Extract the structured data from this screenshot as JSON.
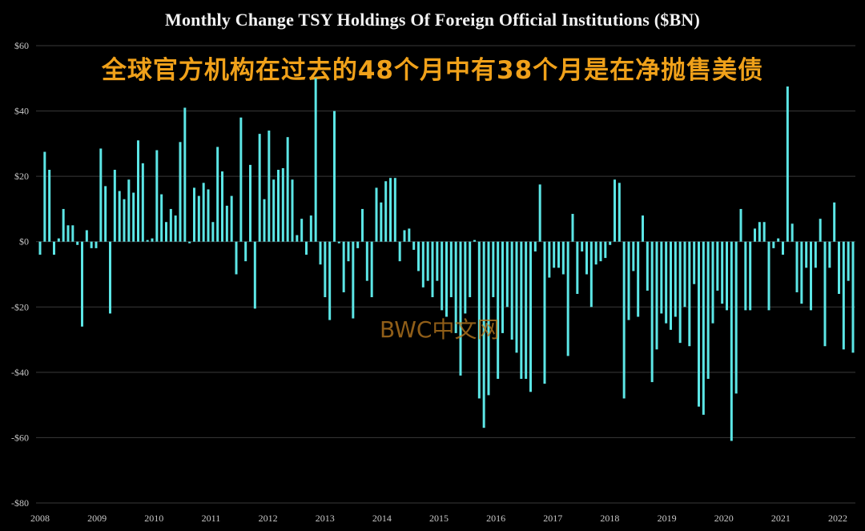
{
  "title": "Monthly Change TSY Holdings Of Foreign Official Institutions ($BN)",
  "subtitle": "全球官方机构在过去的48个月中有38个月是在净抛售美债",
  "watermark": "BWC中文网",
  "colors": {
    "background": "#000000",
    "bar": "#5ce6e6",
    "grid": "#3a3a3a",
    "title": "#f2f2f2",
    "subtitle": "#f0a11a",
    "watermark": "#b9791f"
  },
  "chart_data": {
    "type": "bar",
    "ylim": [
      -80,
      60
    ],
    "yticks": [
      60,
      40,
      20,
      0,
      -20,
      -40,
      -60,
      -80
    ],
    "ytick_labels": [
      "$60",
      "$40",
      "$20",
      "$0",
      "-$20",
      "-$40",
      "-$60",
      "-$80"
    ],
    "xtick_labels": [
      "2008",
      "2009",
      "2010",
      "2011",
      "2012",
      "2013",
      "2014",
      "2015",
      "2016",
      "2017",
      "2018",
      "2019",
      "2020",
      "2021",
      "2022"
    ],
    "grid": true,
    "x_start": "2008-01",
    "frequency": "monthly",
    "values": [
      -4,
      27.5,
      22,
      -4,
      1,
      10,
      5,
      5,
      -1,
      -26,
      3.5,
      -2,
      -2,
      28.5,
      17,
      -22,
      22,
      15.5,
      13,
      19,
      15,
      31,
      24,
      0.5,
      1,
      28,
      14.5,
      6,
      10,
      8,
      30.5,
      41,
      -0.5,
      16.5,
      14,
      18,
      16,
      6,
      29,
      21.5,
      11,
      14,
      -10,
      38,
      -6,
      23.5,
      -20.5,
      33,
      13,
      34,
      19,
      22,
      22.5,
      32,
      19,
      2,
      7,
      -4,
      8,
      50,
      -7,
      -17,
      -24,
      40,
      -0.5,
      -15.5,
      -6,
      -23.5,
      -2,
      10,
      -12,
      -17,
      16.5,
      12,
      18.5,
      19.5,
      19.5,
      -6,
      3.5,
      4,
      -2.5,
      -9,
      -14,
      -12,
      -17,
      -12,
      -21,
      -23,
      -17,
      -28,
      -41,
      -22,
      -17,
      0.5,
      -48,
      -57,
      -47,
      -17,
      -42,
      -28,
      -20,
      -30,
      -34,
      -42,
      -42,
      -46,
      -3,
      17.5,
      -43.5,
      -11,
      -8,
      -8,
      -10,
      -35,
      8.5,
      -16,
      -3,
      -10,
      -20,
      -7,
      -6,
      -5,
      -1,
      19,
      18,
      -48,
      -24,
      -9,
      -23,
      8,
      -15,
      -43,
      -33,
      -22,
      -25,
      -27,
      -23,
      -31,
      -20,
      -32,
      -13,
      -50.5,
      -53,
      -42,
      -25,
      -15,
      -19,
      -21,
      -61,
      -46.5,
      10,
      -21,
      -21,
      4,
      6,
      6,
      -21,
      -2,
      1,
      -4,
      47.5,
      5.5,
      -15.5,
      -19,
      -8,
      -21,
      -8,
      7,
      -32,
      -8,
      12,
      -16,
      -33,
      -12,
      -34
    ]
  }
}
